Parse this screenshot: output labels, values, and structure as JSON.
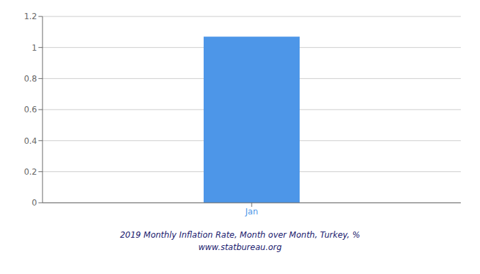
{
  "chart_data": {
    "type": "bar",
    "title": "2019 Monthly Inflation Rate, Month over Month, Turkey, %",
    "subtitle": "www.statbureau.org",
    "categories": [
      "Jan"
    ],
    "values": [
      1.07
    ],
    "color": "#4d96e8",
    "ylim": [
      0,
      1.2
    ],
    "yticks": [
      0,
      0.2,
      0.4,
      0.6,
      0.8,
      1.0,
      1.2
    ],
    "grid": true
  }
}
